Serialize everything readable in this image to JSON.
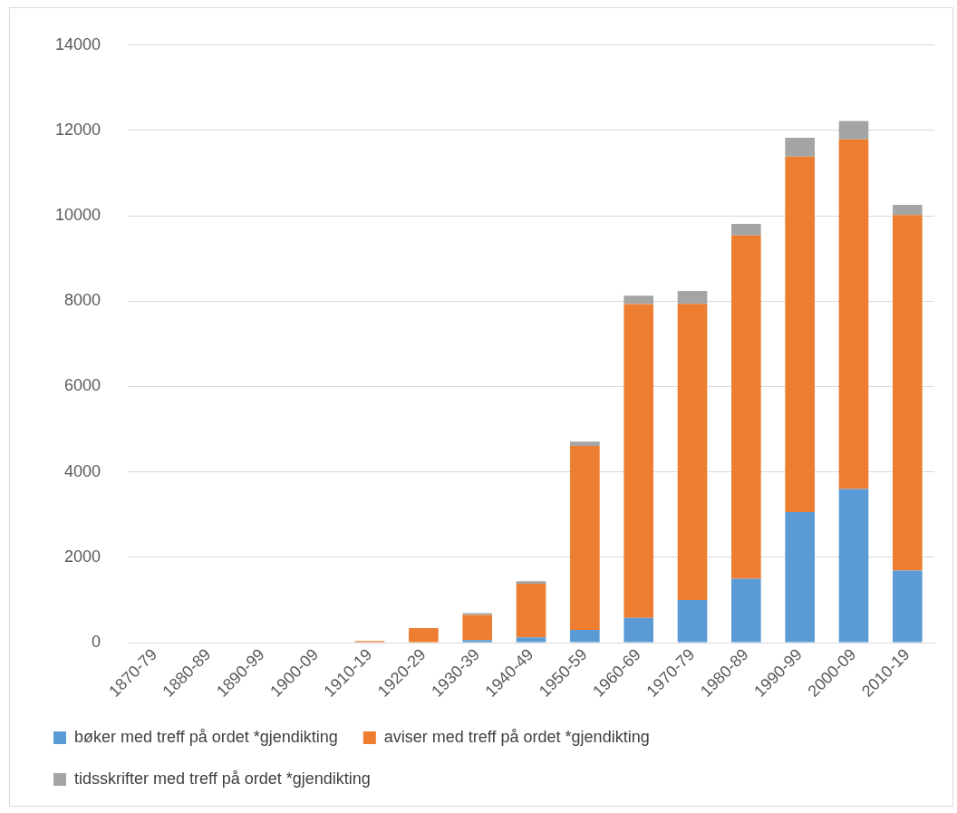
{
  "chart_data": {
    "type": "bar",
    "stacked": true,
    "categories": [
      "1870-79",
      "1880-89",
      "1890-99",
      "1900-09",
      "1910-19",
      "1920-29",
      "1930-39",
      "1940-49",
      "1950-59",
      "1960-69",
      "1970-79",
      "1980-89",
      "1990-99",
      "2000-09",
      "2010-19"
    ],
    "series": [
      {
        "name": "bøker med treff på ordet *gjendikting",
        "color": "#5b9bd5",
        "values": [
          0,
          0,
          0,
          0,
          null,
          null,
          60,
          120,
          300,
          580,
          1000,
          1500,
          3060,
          3600,
          1690
        ]
      },
      {
        "name": "aviser med treff på ordet *gjendikting",
        "color": "#ed7d31",
        "values": [
          0,
          0,
          0,
          null,
          40,
          340,
          590,
          1260,
          4310,
          7350,
          6940,
          8040,
          8330,
          8190,
          8330
        ]
      },
      {
        "name": "tidsskrifter med treff på ordet *gjendikting",
        "color": "#a5a5a5",
        "values": [
          0,
          0,
          0,
          0,
          null,
          null,
          40,
          60,
          100,
          200,
          300,
          270,
          440,
          430,
          240
        ]
      }
    ],
    "ylim": [
      0,
      14000
    ],
    "yticks": [
      0,
      2000,
      4000,
      6000,
      8000,
      10000,
      12000,
      14000
    ],
    "grid": "y",
    "legend": "bottom"
  }
}
